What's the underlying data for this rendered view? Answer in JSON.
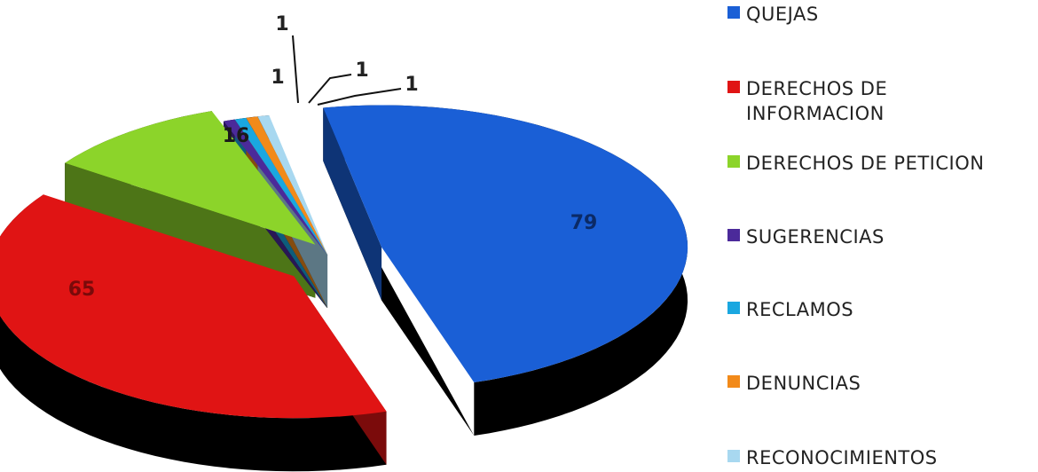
{
  "chart_data": {
    "type": "pie",
    "title": "",
    "categories": [
      "QUEJAS",
      "DERECHOS DE INFORMACION",
      "DERECHOS DE PETICION",
      "SUGERENCIAS",
      "RECLAMOS",
      "DENUNCIAS",
      "RECONOCIMIENTOS"
    ],
    "values": [
      79,
      65,
      16,
      1,
      1,
      1,
      1
    ],
    "data_labels": [
      "79",
      "65",
      "16",
      "1",
      "1",
      "1",
      "1"
    ],
    "colors": [
      "#1a5fd6",
      "#e01414",
      "#8cd42a",
      "#4b2a9a",
      "#1aa7e0",
      "#f28a1a",
      "#a8d8f0"
    ],
    "legend_position": "right",
    "style": "3d-exploded"
  }
}
